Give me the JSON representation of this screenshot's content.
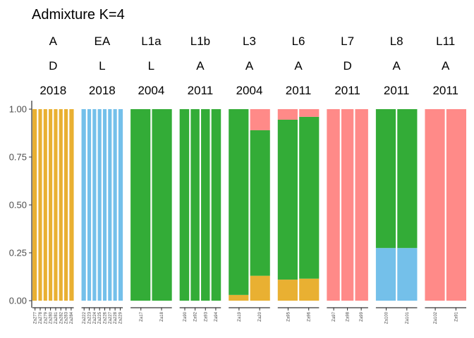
{
  "chart_data": {
    "type": "bar",
    "title": "Admixture K=4",
    "stacked": true,
    "ylim": [
      0,
      1
    ],
    "y_ticks": [
      "0.00",
      "0.25",
      "0.50",
      "0.75",
      "1.00"
    ],
    "component_colors": [
      "#E9B032",
      "#74C0EA",
      "#33AC37",
      "#FF8A88"
    ],
    "panels": [
      {
        "header": [
          "A",
          "D",
          "2018"
        ],
        "samples": [
          "Za277",
          "Za278",
          "Za279",
          "Za280",
          "Za281",
          "Za282",
          "Za283",
          "Za284"
        ],
        "values": [
          [
            1,
            0,
            0,
            0
          ],
          [
            1,
            0,
            0,
            0
          ],
          [
            1,
            0,
            0,
            0
          ],
          [
            1,
            0,
            0,
            0
          ],
          [
            1,
            0,
            0,
            0
          ],
          [
            1,
            0,
            0,
            0
          ],
          [
            1,
            0,
            0,
            0
          ],
          [
            1,
            0,
            0,
            0
          ]
        ]
      },
      {
        "header": [
          "EA",
          "L",
          "2018"
        ],
        "samples": [
          "Za222",
          "Za223",
          "Za224",
          "Za225",
          "Za226",
          "Za227",
          "Za228",
          "Za229"
        ],
        "values": [
          [
            0,
            1,
            0,
            0
          ],
          [
            0,
            1,
            0,
            0
          ],
          [
            0,
            1,
            0,
            0
          ],
          [
            0,
            1,
            0,
            0
          ],
          [
            0,
            1,
            0,
            0
          ],
          [
            0,
            1,
            0,
            0
          ],
          [
            0,
            1,
            0,
            0
          ],
          [
            0,
            1,
            0,
            0
          ]
        ]
      },
      {
        "header": [
          "L1a",
          "L",
          "2004"
        ],
        "samples": [
          "Za17",
          "Za18"
        ],
        "values": [
          [
            0,
            0,
            1,
            0
          ],
          [
            0,
            0,
            1,
            0
          ]
        ]
      },
      {
        "header": [
          "L1b",
          "A",
          "2011"
        ],
        "samples": [
          "Za90",
          "Za92",
          "Za93",
          "Za94"
        ],
        "values": [
          [
            0,
            0,
            1,
            0
          ],
          [
            0,
            0,
            1,
            0
          ],
          [
            0,
            0,
            1,
            0
          ],
          [
            0,
            0,
            1,
            0
          ]
        ]
      },
      {
        "header": [
          "L3",
          "A",
          "2004"
        ],
        "samples": [
          "Za19",
          "Za20"
        ],
        "values": [
          [
            0.03,
            0,
            0.97,
            0
          ],
          [
            0.13,
            0,
            0.76,
            0.11
          ]
        ]
      },
      {
        "header": [
          "L6",
          "A",
          "2011"
        ],
        "samples": [
          "Za95",
          "Za96"
        ],
        "values": [
          [
            0.11,
            0,
            0.835,
            0.055
          ],
          [
            0.115,
            0,
            0.845,
            0.04
          ]
        ]
      },
      {
        "header": [
          "L7",
          "D",
          "2011"
        ],
        "samples": [
          "Za97",
          "Za98",
          "Za99"
        ],
        "values": [
          [
            0,
            0,
            0,
            1
          ],
          [
            0,
            0,
            0,
            1
          ],
          [
            0,
            0,
            0,
            1
          ]
        ]
      },
      {
        "header": [
          "L8",
          "A",
          "2011"
        ],
        "samples": [
          "Za100",
          "Za101"
        ],
        "values": [
          [
            0,
            0.275,
            0.725,
            0
          ],
          [
            0,
            0.275,
            0.725,
            0
          ]
        ]
      },
      {
        "header": [
          "L11",
          "A",
          "2011"
        ],
        "samples": [
          "Za102",
          "Za91"
        ],
        "values": [
          [
            0,
            0,
            0,
            1
          ],
          [
            0,
            0,
            0,
            1
          ]
        ]
      }
    ]
  }
}
